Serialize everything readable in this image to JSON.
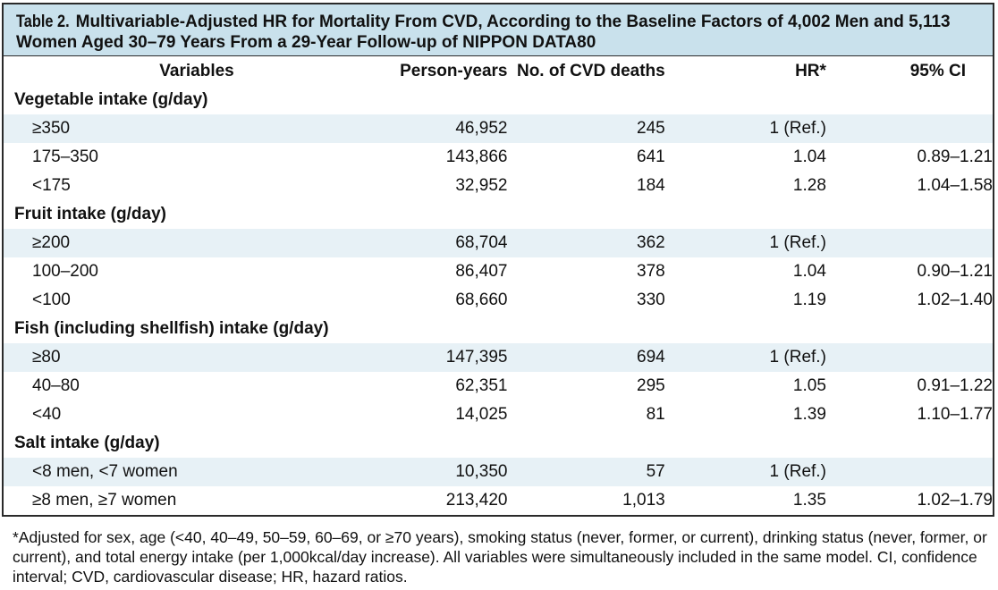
{
  "table": {
    "label": "Table 2.",
    "title": "Multivariable-Adjusted HR for Mortality From CVD, According to the Baseline Factors of 4,002 Men and 5,113 Women Aged 30–79 Years From a 29-Year Follow-up of NIPPON DATA80",
    "headers": [
      "Variables",
      "Person-years",
      "No. of CVD deaths",
      "HR*",
      "95% CI"
    ],
    "groups": [
      {
        "name": "Vegetable intake (g/day)",
        "rows": [
          {
            "label": "≥350",
            "person_years": "46,952",
            "deaths": "245",
            "hr": "1 (Ref.)",
            "ci": ""
          },
          {
            "label": "175–350",
            "person_years": "143,866",
            "deaths": "641",
            "hr": "1.04",
            "ci": "0.89–1.21"
          },
          {
            "label": "<175",
            "person_years": "32,952",
            "deaths": "184",
            "hr": "1.28",
            "ci": "1.04–1.58"
          }
        ]
      },
      {
        "name": "Fruit intake (g/day)",
        "rows": [
          {
            "label": "≥200",
            "person_years": "68,704",
            "deaths": "362",
            "hr": "1 (Ref.)",
            "ci": ""
          },
          {
            "label": "100–200",
            "person_years": "86,407",
            "deaths": "378",
            "hr": "1.04",
            "ci": "0.90–1.21"
          },
          {
            "label": "<100",
            "person_years": "68,660",
            "deaths": "330",
            "hr": "1.19",
            "ci": "1.02–1.40"
          }
        ]
      },
      {
        "name": "Fish (including shellfish) intake (g/day)",
        "rows": [
          {
            "label": "≥80",
            "person_years": "147,395",
            "deaths": "694",
            "hr": "1 (Ref.)",
            "ci": ""
          },
          {
            "label": "40–80",
            "person_years": "62,351",
            "deaths": "295",
            "hr": "1.05",
            "ci": "0.91–1.22"
          },
          {
            "label": "<40",
            "person_years": "14,025",
            "deaths": "81",
            "hr": "1.39",
            "ci": "1.10–1.77"
          }
        ]
      },
      {
        "name": "Salt intake (g/day)",
        "rows": [
          {
            "label": "<8 men, <7 women",
            "person_years": "10,350",
            "deaths": "57",
            "hr": "1 (Ref.)",
            "ci": ""
          },
          {
            "label": "≥8 men, ≥7 women",
            "person_years": "213,420",
            "deaths": "1,013",
            "hr": "1.35",
            "ci": "1.02–1.79"
          }
        ]
      }
    ],
    "footnote": "*Adjusted for sex, age (<40, 40–49, 50–59, 60–69, or ≥70 years), smoking status (never, former, or current), drinking status (never, former, or current), and total energy intake (per 1,000kcal/day increase). All variables were simultaneously included in the same model. CI, confidence interval; CVD, cardiovascular disease; HR, hazard ratios.",
    "colors": {
      "caption_bg": "#c9e1ec",
      "shade_bg": "#e7f1f6",
      "border": "#2a2a2a"
    }
  }
}
